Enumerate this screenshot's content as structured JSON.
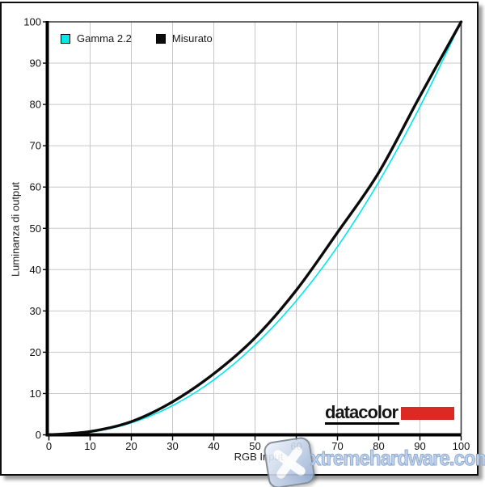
{
  "panel": {
    "background": "#ffffff",
    "border_color": "#0e0e0e",
    "grid_color": "#c8c8c8",
    "axis_color": "#000000",
    "frame_color": "#3a3a3a",
    "tick_text_color": "#111111"
  },
  "logo": {
    "text": "datacolor",
    "red": "#db2a23"
  },
  "watermark": {
    "text": "xtremehardware.com",
    "text_color": "#c0d2ec"
  },
  "chart_data": {
    "type": "line",
    "title": "",
    "xlabel": "RGB Input",
    "ylabel": "Luminanza di output",
    "xlim": [
      0,
      100
    ],
    "ylim": [
      0,
      100
    ],
    "xticks": [
      0,
      10,
      20,
      30,
      40,
      50,
      60,
      70,
      80,
      90,
      100
    ],
    "yticks": [
      0,
      10,
      20,
      30,
      40,
      50,
      60,
      70,
      80,
      90,
      100
    ],
    "grid": true,
    "legend_position": "top-left-inside",
    "x": [
      0,
      10,
      20,
      30,
      40,
      50,
      60,
      70,
      80,
      90,
      100
    ],
    "series": [
      {
        "name": "Gamma 2.2",
        "color": "#00e8e8",
        "width": 1.6,
        "values": [
          0,
          0.63,
          2.89,
          7.08,
          13.31,
          21.76,
          32.45,
          45.56,
          61.21,
          79.43,
          100
        ]
      },
      {
        "name": "Misurato",
        "color": "#0b0b0b",
        "width": 3.4,
        "values": [
          0,
          0.8,
          3.2,
          8.0,
          14.8,
          23.5,
          35.0,
          49.0,
          63.5,
          82.0,
          100
        ]
      }
    ]
  }
}
